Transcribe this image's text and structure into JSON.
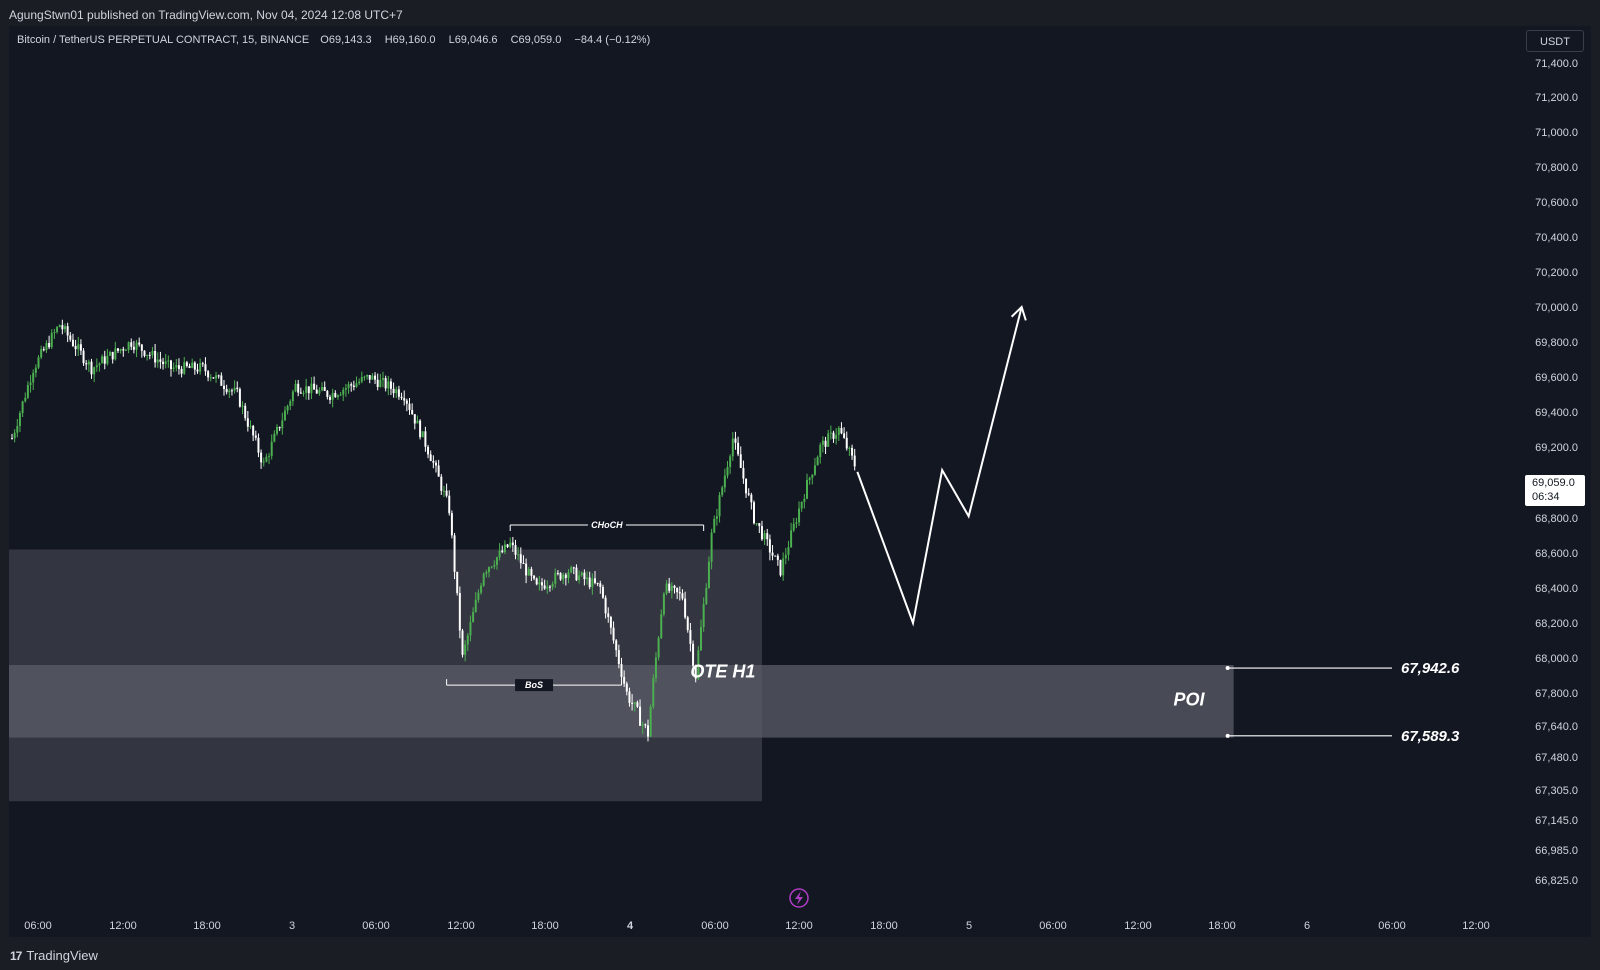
{
  "header": {
    "publisher_line": "AgungStwn01 published on TradingView.com, Nov 04, 2024 12:08 UTC+7"
  },
  "legend": {
    "symbol": "Bitcoin / TetherUS PERPETUAL CONTRACT, 15, BINANCE",
    "open_label": "O",
    "open": "69,143.3",
    "high_label": "H",
    "high": "69,160.0",
    "low_label": "L",
    "low": "69,046.6",
    "close_label": "C",
    "close": "69,059.0",
    "change": "−84.4 (−0.12%)"
  },
  "price_axis": {
    "currency": "USDT",
    "last_price": "69,059.0",
    "countdown": "06:34"
  },
  "footer": {
    "brand": "TradingView",
    "logo": "17"
  },
  "colors": {
    "background": "#131722",
    "up": "#4caf50",
    "down": "#ffffff",
    "text": "#d1d4dc",
    "zone_outer": "#3a3c47",
    "zone_inner": "#5b5d68"
  },
  "chart_data": {
    "type": "candlestick",
    "timeframe": "15",
    "price_ticks": [
      {
        "label": "71,400.0",
        "value": 71400
      },
      {
        "label": "71,200.0",
        "value": 71200
      },
      {
        "label": "71,000.0",
        "value": 71000
      },
      {
        "label": "70,800.0",
        "value": 70800
      },
      {
        "label": "70,600.0",
        "value": 70600
      },
      {
        "label": "70,400.0",
        "value": 70400
      },
      {
        "label": "70,200.0",
        "value": 70200
      },
      {
        "label": "70,000.0",
        "value": 70000
      },
      {
        "label": "69,800.0",
        "value": 69800
      },
      {
        "label": "69,600.0",
        "value": 69600
      },
      {
        "label": "69,400.0",
        "value": 69400
      },
      {
        "label": "69,200.0",
        "value": 69200
      },
      {
        "label": "68,800.0",
        "value": 68800
      },
      {
        "label": "68,600.0",
        "value": 68600
      },
      {
        "label": "68,400.0",
        "value": 68400
      },
      {
        "label": "68,200.0",
        "value": 68200
      },
      {
        "label": "68,000.0",
        "value": 68000
      },
      {
        "label": "67,800.0",
        "value": 67800
      },
      {
        "label": "67,640.0",
        "value": 67640
      },
      {
        "label": "67,480.0",
        "value": 67480
      },
      {
        "label": "67,305.0",
        "value": 67305
      },
      {
        "label": "67,145.0",
        "value": 67145
      },
      {
        "label": "66,985.0",
        "value": 66985
      },
      {
        "label": "66,825.0",
        "value": 66825
      }
    ],
    "time_ticks": [
      "06:00",
      "12:00",
      "18:00",
      "3",
      "06:00",
      "12:00",
      "18:00",
      "4",
      "06:00",
      "12:00",
      "18:00",
      "5",
      "06:00",
      "12:00",
      "18:00",
      "6",
      "06:00",
      "12:00"
    ],
    "time_tick_bold": [
      false,
      false,
      false,
      false,
      false,
      false,
      false,
      true,
      false,
      false,
      false,
      false,
      false,
      false,
      false,
      false,
      false,
      false
    ],
    "anchors": [
      {
        "t": 0,
        "p": 69250
      },
      {
        "t": 8,
        "p": 69650
      },
      {
        "t": 18,
        "p": 69900
      },
      {
        "t": 30,
        "p": 69650
      },
      {
        "t": 45,
        "p": 69800
      },
      {
        "t": 60,
        "p": 69650
      },
      {
        "t": 72,
        "p": 69650
      },
      {
        "t": 85,
        "p": 69500
      },
      {
        "t": 95,
        "p": 69100
      },
      {
        "t": 107,
        "p": 69550
      },
      {
        "t": 120,
        "p": 69500
      },
      {
        "t": 135,
        "p": 69600
      },
      {
        "t": 148,
        "p": 69500
      },
      {
        "t": 158,
        "p": 69150
      },
      {
        "t": 165,
        "p": 68850
      },
      {
        "t": 170,
        "p": 68000
      },
      {
        "t": 178,
        "p": 68500
      },
      {
        "t": 188,
        "p": 68650
      },
      {
        "t": 198,
        "p": 68400
      },
      {
        "t": 210,
        "p": 68500
      },
      {
        "t": 222,
        "p": 68400
      },
      {
        "t": 232,
        "p": 67800
      },
      {
        "t": 240,
        "p": 67600
      },
      {
        "t": 246,
        "p": 68400
      },
      {
        "t": 253,
        "p": 68350
      },
      {
        "t": 258,
        "p": 67900
      },
      {
        "t": 264,
        "p": 68700
      },
      {
        "t": 272,
        "p": 69250
      },
      {
        "t": 280,
        "p": 68800
      },
      {
        "t": 290,
        "p": 68500
      },
      {
        "t": 298,
        "p": 68900
      },
      {
        "t": 305,
        "p": 69200
      },
      {
        "t": 312,
        "p": 69300
      },
      {
        "t": 318,
        "p": 69100
      }
    ],
    "zones": [
      {
        "name": "outer-zone",
        "top": 68620,
        "bottom": 67245,
        "t_start": 0,
        "t_end": 283
      },
      {
        "name": "ote-zone",
        "top": 67960,
        "bottom": 67580,
        "t_start": 0,
        "t_end": 461
      }
    ],
    "structure_lines": [
      {
        "label": "CHoCH",
        "price": 68760,
        "t_start": 188,
        "t_end": 261
      },
      {
        "label": "BoS",
        "price": 67845,
        "t_start": 164,
        "t_end": 230
      }
    ],
    "annotations": [
      {
        "label": "OTE H1",
        "t": 256,
        "price": 67890
      },
      {
        "label": "POI",
        "t": 450,
        "price": 67740
      }
    ],
    "levels": [
      {
        "label": "67,942.6",
        "price": 67942.6
      },
      {
        "label": "67,589.3",
        "price": 67589.3
      }
    ],
    "projection": [
      {
        "t": 319,
        "p": 69060
      },
      {
        "t": 340,
        "p": 68200
      },
      {
        "t": 351,
        "p": 69070
      },
      {
        "t": 361,
        "p": 68810
      },
      {
        "t": 381,
        "p": 70000
      }
    ]
  }
}
